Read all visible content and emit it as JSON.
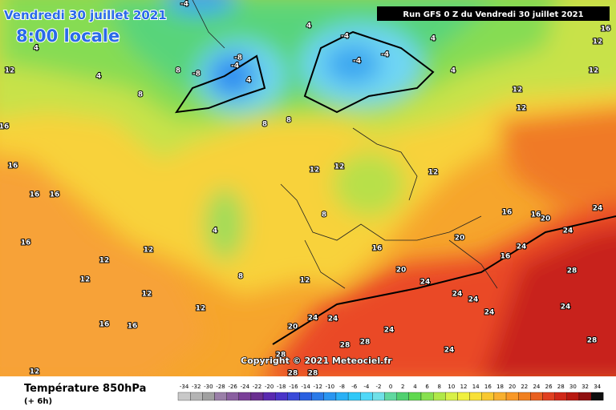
{
  "header": {
    "date": "Vendredi 30 juillet 2021",
    "time": "8:00 locale",
    "run": "Run GFS 0 Z du Vendredi 30 juillet 2021"
  },
  "copyright": "Copyright © 2021 Meteociel.fr",
  "legend": {
    "title": "Température 850hPa",
    "subtitle": "(+ 6h)",
    "ticks": [
      -34,
      -32,
      -30,
      -28,
      -26,
      -24,
      -22,
      -20,
      -18,
      -16,
      -14,
      -12,
      -10,
      -8,
      -6,
      -4,
      -2,
      0,
      2,
      4,
      6,
      8,
      10,
      12,
      14,
      16,
      18,
      20,
      22,
      24,
      26,
      28,
      30,
      32,
      34
    ],
    "colors": [
      "#c8c8c8",
      "#b4b4b4",
      "#a0a0a0",
      "#9a7fa8",
      "#8a5fa0",
      "#7a3f98",
      "#6a2f90",
      "#5a2ab0",
      "#4a35c8",
      "#3a4ad8",
      "#2a60e0",
      "#2a7ae8",
      "#2a95f0",
      "#2ab0f5",
      "#30c8f8",
      "#50d8f8",
      "#70e0e8",
      "#60d8a0",
      "#50d070",
      "#60d850",
      "#88e050",
      "#b0e848",
      "#d8f048",
      "#f0f040",
      "#f8e038",
      "#f8c830",
      "#f8b030",
      "#f89828",
      "#f08020",
      "#e86020",
      "#e04020",
      "#d02818",
      "#b81810",
      "#901010",
      "#101010"
    ]
  },
  "map_labels": [
    -4,
    4,
    12,
    4,
    8,
    8,
    -8,
    -8,
    -4,
    4,
    4,
    -4,
    -4,
    -4,
    4,
    4,
    12,
    12,
    16,
    16,
    16,
    16,
    16,
    12,
    12,
    12,
    12,
    12,
    16,
    16,
    12,
    4,
    8,
    12,
    12,
    12,
    16,
    16,
    20,
    20,
    24,
    24,
    24,
    16,
    16,
    20,
    24,
    24,
    24,
    24,
    24,
    24,
    20,
    24,
    28,
    28,
    24,
    24,
    28,
    28,
    28,
    28,
    28,
    12,
    8,
    8,
    8,
    16,
    12,
    12
  ]
}
